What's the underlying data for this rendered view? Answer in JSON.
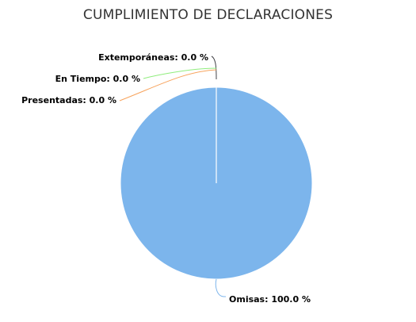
{
  "chart_data": {
    "type": "pie",
    "title": "CUMPLIMIENTO DE DECLARACIONES",
    "slices": [
      {
        "label": "Omisas",
        "value": 100.0,
        "label_text": "Omisas: 100.0 %",
        "color": "#7cb5ec"
      },
      {
        "label": "Extemporáneas",
        "value": 0.0,
        "label_text": "Extemporáneas: 0.0 %",
        "color": "#434348"
      },
      {
        "label": "En Tiempo",
        "value": 0.0,
        "label_text": "En Tiempo: 0.0 %",
        "color": "#90ed7d"
      },
      {
        "label": "Presentadas",
        "value": 0.0,
        "label_text": "Presentadas: 0.0 %",
        "color": "#f7a35c"
      }
    ],
    "legend": "none"
  }
}
